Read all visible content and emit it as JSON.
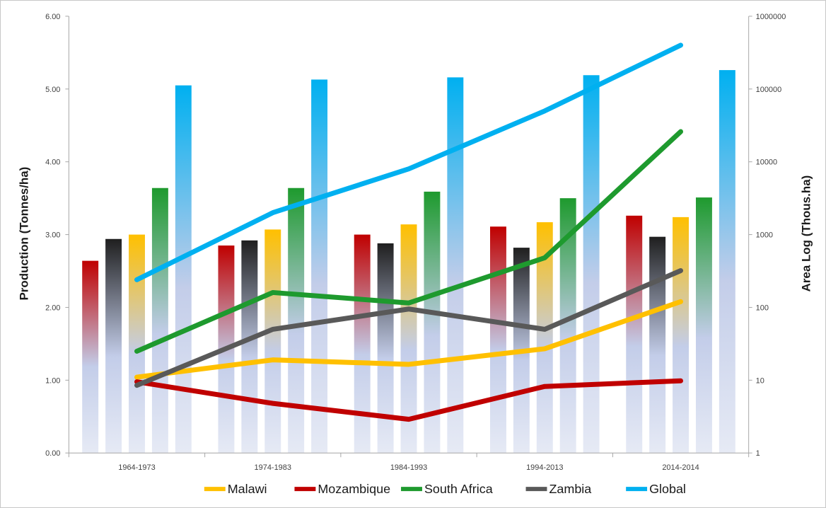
{
  "chart_data": {
    "type": "bar",
    "title": "",
    "categories": [
      "1964-1973",
      "1974-1983",
      "1984-1993",
      "1994-2013",
      "2014-2014"
    ],
    "y_left": {
      "label": "Production (Tonnes/ha)",
      "ylim": [
        0,
        6
      ],
      "ticks": [
        "0.00",
        "1.00",
        "2.00",
        "3.00",
        "4.00",
        "5.00",
        "6.00"
      ]
    },
    "y_right": {
      "label": "Area  Log (Thous.ha)",
      "scale": "log",
      "ylim": [
        1,
        1000000
      ],
      "ticks": [
        "1",
        "10",
        "100",
        "1000",
        "10000",
        "100000",
        "1000000"
      ]
    },
    "bar_series": [
      {
        "country": "Mozambique",
        "color": "#c00000",
        "values": [
          2.64,
          2.85,
          3.0,
          3.11,
          3.26
        ]
      },
      {
        "country": "Zambia",
        "color": "#1f1f1f",
        "values": [
          2.94,
          2.92,
          2.88,
          2.82,
          2.97
        ]
      },
      {
        "country": "Malawi",
        "color": "#ffc000",
        "values": [
          3.0,
          3.07,
          3.14,
          3.17,
          3.24
        ]
      },
      {
        "country": "South Africa",
        "color": "#1e9a2e",
        "values": [
          3.64,
          3.64,
          3.59,
          3.5,
          3.51
        ]
      },
      {
        "country": "Global",
        "color": "#00b0f0",
        "values": [
          5.05,
          5.13,
          5.16,
          5.19,
          5.26
        ]
      }
    ],
    "line_series": [
      {
        "name": "Malawi",
        "color": "#ffc000",
        "values": [
          11,
          19,
          16.5,
          27,
          120
        ]
      },
      {
        "name": "Mozambique",
        "color": "#c00000",
        "values": [
          9.5,
          4.8,
          2.9,
          8.2,
          9.8
        ]
      },
      {
        "name": "South Africa",
        "color": "#1e9a2e",
        "values": [
          25,
          160,
          115,
          480,
          26000
        ]
      },
      {
        "name": "Zambia",
        "color": "#595959",
        "values": [
          8.5,
          50,
          95,
          50,
          320
        ]
      },
      {
        "name": "Global",
        "color": "#00b0f0",
        "values": [
          240,
          2000,
          8000,
          50000,
          400000
        ]
      }
    ],
    "legend_position": "bottom",
    "grid": false
  },
  "legend": [
    {
      "name": "Malawi",
      "color": "#ffc000"
    },
    {
      "name": "Mozambique",
      "color": "#c00000"
    },
    {
      "name": "South Africa",
      "color": "#1e9a2e"
    },
    {
      "name": "Zambia",
      "color": "#595959"
    },
    {
      "name": "Global",
      "color": "#00b0f0"
    }
  ]
}
